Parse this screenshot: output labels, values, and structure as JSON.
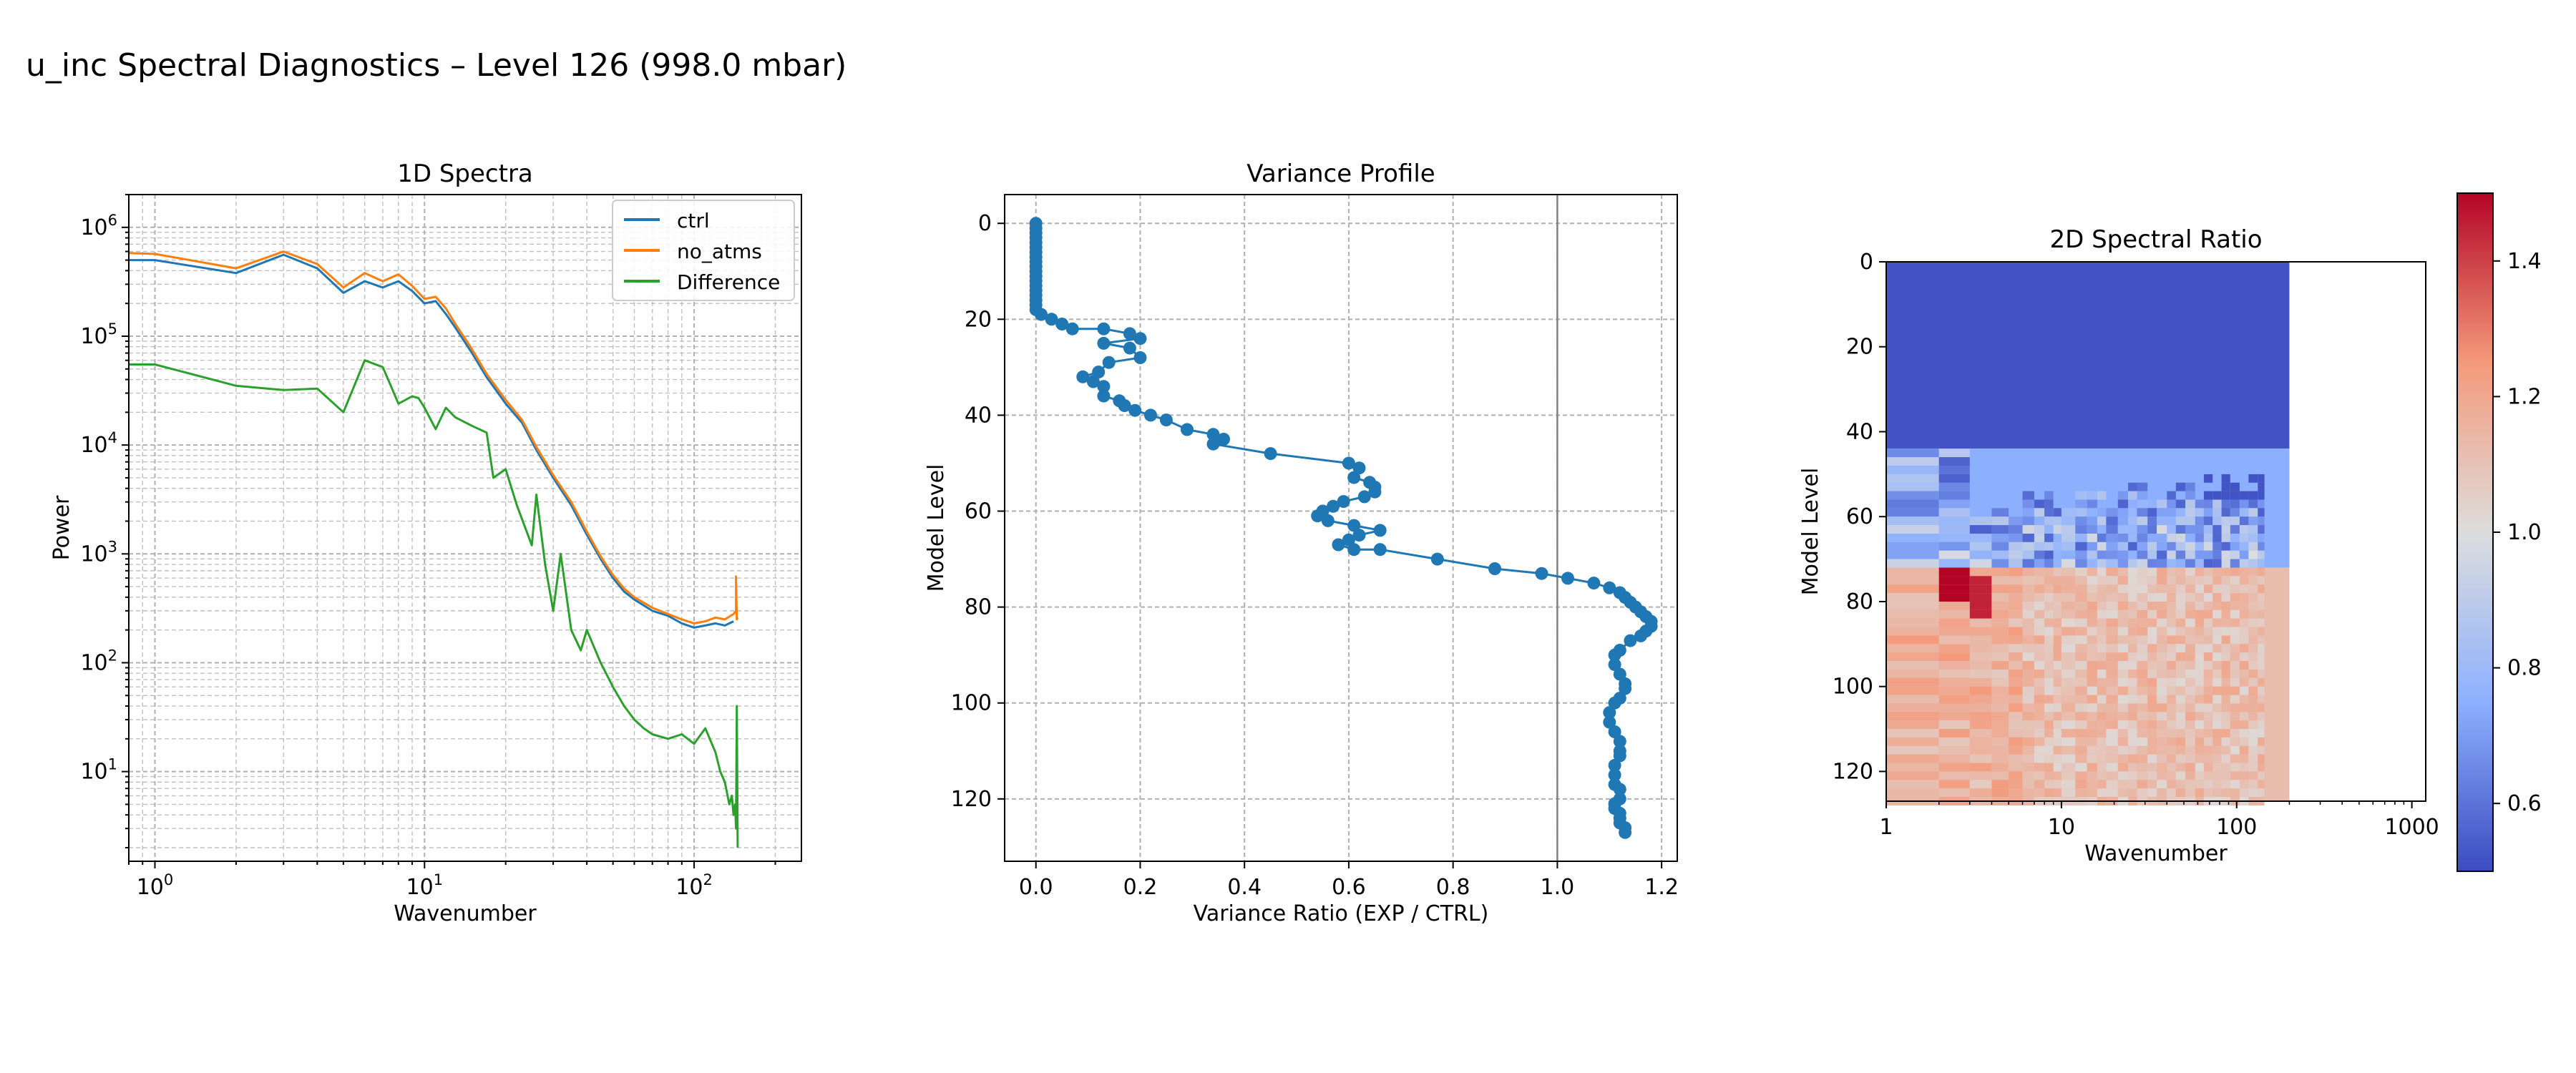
{
  "figure": {
    "title": "u_inc Spectral Diagnostics – Level 126 (998.0 mbar)"
  },
  "chart_data": [
    {
      "type": "line",
      "title": "1D Spectra",
      "xlabel": "Wavenumber",
      "ylabel": "Power",
      "xscale": "log",
      "yscale": "log",
      "xlim": [
        0.8,
        250
      ],
      "ylim": [
        1.5,
        2000000
      ],
      "grid": true,
      "legend": "top-right",
      "x_ticks": [
        {
          "v": 1,
          "base": "10",
          "exp": "0"
        },
        {
          "v": 10,
          "base": "10",
          "exp": "1"
        },
        {
          "v": 100,
          "base": "10",
          "exp": "2"
        }
      ],
      "y_ticks": [
        {
          "v": 10,
          "base": "10",
          "exp": "1"
        },
        {
          "v": 100,
          "base": "10",
          "exp": "2"
        },
        {
          "v": 1000,
          "base": "10",
          "exp": "3"
        },
        {
          "v": 10000,
          "base": "10",
          "exp": "4"
        },
        {
          "v": 100000,
          "base": "10",
          "exp": "5"
        },
        {
          "v": 1000000,
          "base": "10",
          "exp": "6"
        }
      ],
      "series": [
        {
          "name": "ctrl",
          "color": "#1f77b4",
          "x": [
            0.8,
            1,
            2,
            3,
            4,
            5,
            6,
            7,
            8,
            9,
            10,
            11,
            12,
            13,
            15,
            17,
            20,
            23,
            26,
            30,
            35,
            40,
            45,
            50,
            55,
            60,
            70,
            80,
            90,
            100,
            110,
            120,
            130,
            140
          ],
          "y": [
            500000,
            500000,
            380000,
            560000,
            420000,
            250000,
            320000,
            280000,
            320000,
            260000,
            200000,
            210000,
            160000,
            120000,
            70000,
            42000,
            24000,
            16000,
            9000,
            5000,
            2800,
            1500,
            900,
            600,
            450,
            380,
            300,
            270,
            230,
            210,
            220,
            230,
            220,
            240
          ]
        },
        {
          "name": "no_atms",
          "color": "#ff7f0e",
          "x": [
            0.8,
            1,
            2,
            3,
            4,
            5,
            6,
            7,
            8,
            9,
            10,
            11,
            12,
            13,
            15,
            17,
            20,
            23,
            26,
            30,
            35,
            40,
            45,
            50,
            55,
            60,
            70,
            80,
            90,
            100,
            110,
            120,
            130,
            140,
            143,
            143,
            144,
            145
          ],
          "y": [
            580000,
            570000,
            420000,
            600000,
            460000,
            280000,
            380000,
            320000,
            370000,
            290000,
            220000,
            230000,
            180000,
            130000,
            76000,
            45000,
            26000,
            17000,
            9600,
            5300,
            3000,
            1600,
            950,
            640,
            480,
            400,
            320,
            280,
            250,
            230,
            240,
            260,
            250,
            280,
            300,
            620,
            250,
            260
          ]
        },
        {
          "name": "Difference",
          "color": "#2ca02c",
          "x": [
            0.8,
            1,
            2,
            3,
            4,
            5,
            6,
            7,
            7.5,
            8,
            9,
            9.5,
            10,
            11,
            12,
            13,
            15,
            17,
            18,
            20,
            22,
            25,
            26,
            28,
            30,
            32,
            35,
            38,
            40,
            45,
            50,
            55,
            60,
            65,
            70,
            80,
            90,
            100,
            110,
            120,
            125,
            130,
            135,
            138,
            140,
            142,
            143,
            144,
            145
          ],
          "y": [
            55000,
            55000,
            35000,
            32000,
            33000,
            20000,
            60000,
            52000,
            35000,
            24000,
            28000,
            27000,
            22000,
            14000,
            22000,
            18000,
            15000,
            13000,
            5000,
            6000,
            2800,
            1200,
            3500,
            800,
            300,
            1000,
            200,
            130,
            200,
            100,
            60,
            40,
            30,
            25,
            22,
            20,
            22,
            18,
            25,
            15,
            10,
            8,
            5,
            6,
            4,
            5,
            3,
            40,
            2
          ]
        }
      ]
    },
    {
      "type": "line",
      "title": "Variance Profile",
      "xlabel": "Variance Ratio (EXP / CTRL)",
      "ylabel": "Model Level",
      "xlim": [
        -0.06,
        1.23
      ],
      "ylim": [
        133,
        -6
      ],
      "y_inverted": true,
      "grid": true,
      "vline_x": 1.0,
      "x_ticks": [
        "0.0",
        "0.2",
        "0.4",
        "0.6",
        "0.8",
        "1.0",
        "1.2"
      ],
      "y_ticks": [
        "0",
        "20",
        "40",
        "60",
        "80",
        "100",
        "120"
      ],
      "series": [
        {
          "name": "",
          "color": "#1f77b4",
          "x": [
            0.0,
            0.0,
            0.0,
            0.0,
            0.0,
            0.0,
            0.0,
            0.0,
            0.0,
            0.0,
            0.0,
            0.0,
            0.0,
            0.0,
            0.0,
            0.0,
            0.0,
            0.0,
            0.0,
            0.01,
            0.03,
            0.05,
            0.07,
            0.13,
            0.18,
            0.2,
            0.13,
            0.18,
            0.2,
            0.14,
            0.12,
            0.09,
            0.11,
            0.13,
            0.13,
            0.16,
            0.17,
            0.19,
            0.22,
            0.25,
            0.29,
            0.34,
            0.36,
            0.34,
            0.45,
            0.6,
            0.62,
            0.61,
            0.64,
            0.65,
            0.65,
            0.63,
            0.59,
            0.57,
            0.55,
            0.54,
            0.56,
            0.61,
            0.66,
            0.62,
            0.6,
            0.58,
            0.61,
            0.66,
            0.77,
            0.88,
            0.97,
            1.02,
            1.07,
            1.1,
            1.12,
            1.13,
            1.14,
            1.15,
            1.16,
            1.17,
            1.18,
            1.18,
            1.17,
            1.16,
            1.14,
            1.12,
            1.11,
            1.11,
            1.12,
            1.13,
            1.13,
            1.12,
            1.11,
            1.1,
            1.1,
            1.11,
            1.12,
            1.12,
            1.12,
            1.11,
            1.11,
            1.11,
            1.12,
            1.12,
            1.11,
            1.11,
            1.12,
            1.12,
            1.12,
            1.13,
            1.13
          ],
          "y": [
            0,
            1,
            2,
            3,
            4,
            5,
            6,
            7,
            8,
            9,
            10,
            11,
            12,
            13,
            14,
            15,
            16,
            17,
            18,
            19,
            20,
            21,
            22,
            22,
            23,
            24,
            25,
            26,
            28,
            29,
            31,
            32,
            33,
            34,
            36,
            37,
            38,
            39,
            40,
            41,
            43,
            44,
            45,
            46,
            48,
            50,
            51,
            53,
            54,
            55,
            56,
            57,
            58,
            59,
            60,
            61,
            62,
            63,
            64,
            65,
            66,
            67,
            68,
            68,
            70,
            72,
            73,
            74,
            75,
            76,
            77,
            78,
            79,
            80,
            81,
            82,
            83,
            84,
            85,
            86,
            87,
            89,
            90,
            92,
            94,
            96,
            97,
            99,
            100,
            102,
            104,
            106,
            108,
            110,
            111,
            113,
            115,
            117,
            118,
            120,
            121,
            122,
            123,
            124,
            125,
            126,
            127
          ]
        }
      ]
    },
    {
      "type": "heatmap",
      "title": "2D Spectral Ratio",
      "xlabel": "Wavenumber",
      "ylabel": "Model Level",
      "xscale": "log",
      "xlim": [
        1,
        1200
      ],
      "ylim": [
        127,
        0
      ],
      "x_ticks": [
        "1",
        "10",
        "100",
        "1000"
      ],
      "y_ticks": [
        "0",
        "20",
        "40",
        "60",
        "80",
        "100",
        "120"
      ],
      "wavenumber_max": 143,
      "filled_to": 200,
      "colormap": "coolwarm",
      "colorbar": {
        "min": 0.5,
        "max": 1.5,
        "ticks": [
          "0.6",
          "0.8",
          "1.0",
          "1.2",
          "1.4"
        ]
      },
      "level_bands": [
        {
          "levels": [
            0,
            44
          ],
          "ratio": 0.52
        },
        {
          "levels": [
            44,
            72
          ],
          "ratio": 0.75
        },
        {
          "levels": [
            72,
            127
          ],
          "ratio": 1.12
        }
      ],
      "hotspots": [
        {
          "wavenumber": [
            1.6,
            2.3
          ],
          "levels": [
            72,
            78
          ],
          "ratio": 1.5
        },
        {
          "wavenumber": [
            2.6,
            3.4
          ],
          "levels": [
            74,
            82
          ],
          "ratio": 1.45
        }
      ]
    }
  ]
}
